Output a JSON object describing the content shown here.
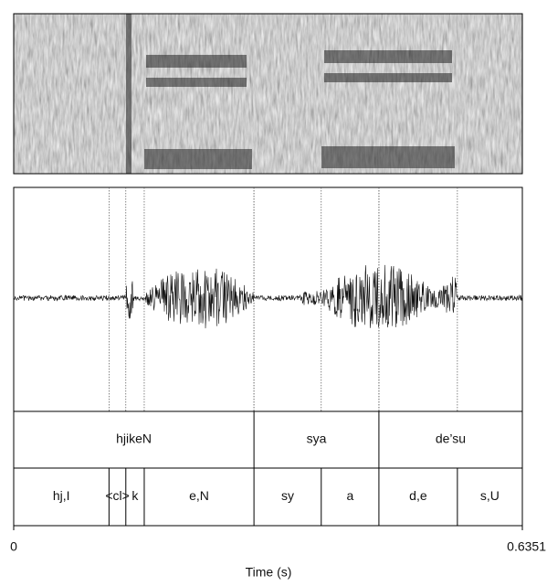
{
  "chart_data": {
    "type": "annotation",
    "xlabel": "Time (s)",
    "xlim": [
      0,
      0.6351
    ],
    "xticks": [
      0,
      0.6351
    ],
    "tiers": [
      {
        "labels": [
          "hjikeN",
          "sya",
          "de’su"
        ],
        "boundaries": [
          0.3,
          0.456
        ]
      },
      {
        "labels": [
          "hj,I",
          "<cl>",
          "k",
          "e,N",
          "sy",
          "a",
          "d,e",
          "s,U"
        ],
        "boundaries": [
          0.119,
          0.14,
          0.163,
          0.3,
          0.384,
          0.456,
          0.554
        ]
      }
    ]
  }
}
